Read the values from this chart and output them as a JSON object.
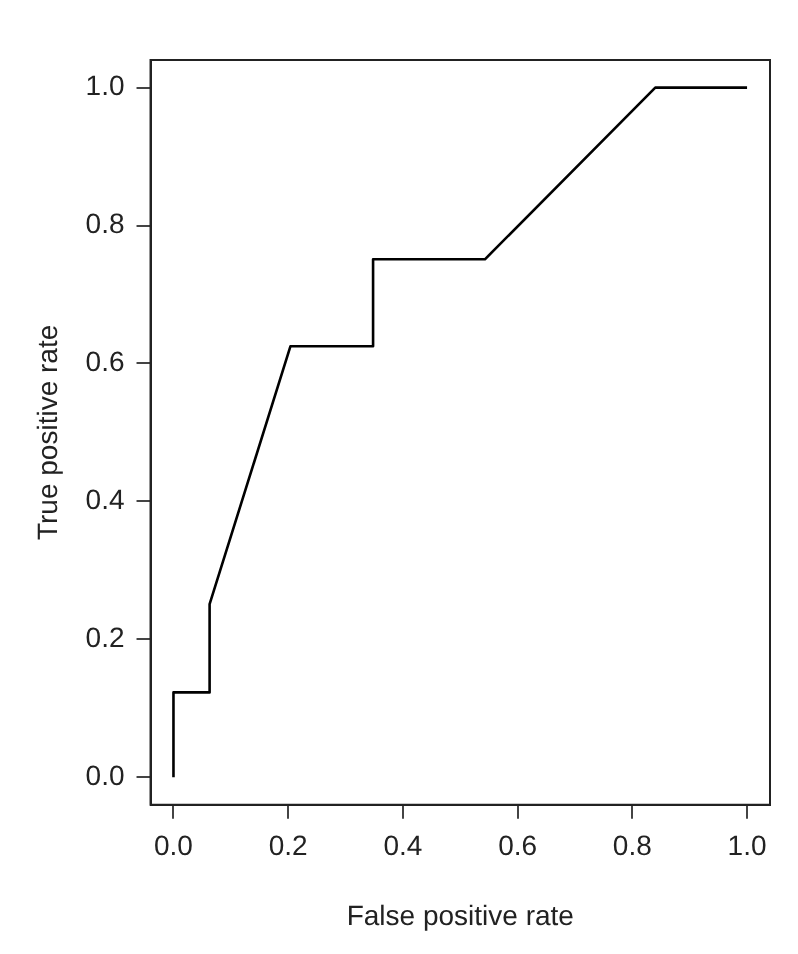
{
  "chart_data": {
    "type": "line",
    "xlabel": "False positive rate",
    "ylabel": "True positive rate",
    "series": [
      {
        "color": "#000000",
        "x": [
          0,
          0,
          0.063,
          0.063,
          0.204,
          0.348,
          0.348,
          0.543,
          0.84,
          1
        ],
        "values": [
          0,
          0.123,
          0.123,
          0.251,
          0.625,
          0.625,
          0.751,
          0.751,
          1,
          1
        ]
      }
    ],
    "xlim": [
      -0.04,
      1.04
    ],
    "ylim": [
      -0.04,
      1.04
    ],
    "xticks": [
      {
        "value": 0,
        "label": "0.0"
      },
      0.2,
      0.4,
      0.6,
      0.8,
      {
        "value": 1,
        "label": "1.0"
      }
    ],
    "yticks": [
      {
        "value": 0,
        "label": "0.0"
      },
      0.2,
      0.4,
      0.6,
      0.8,
      {
        "value": 1,
        "label": "1.0"
      }
    ],
    "grid": false,
    "legend": false,
    "marker": "none",
    "line_style": "solid"
  }
}
